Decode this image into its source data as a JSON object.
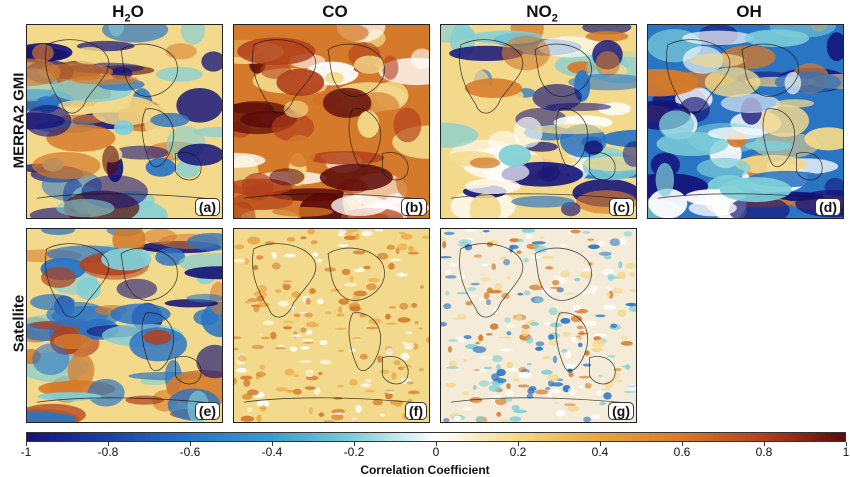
{
  "columns": [
    {
      "main": "H",
      "sub": "2",
      "tail": "O"
    },
    {
      "main": "CO",
      "sub": "",
      "tail": ""
    },
    {
      "main": "NO",
      "sub": "2",
      "tail": ""
    },
    {
      "main": "OH",
      "sub": "",
      "tail": ""
    }
  ],
  "rows": [
    "MERRA2 GMI",
    "Satellite"
  ],
  "panels": [
    {
      "letter": "(a)",
      "theme": "h2o_model"
    },
    {
      "letter": "(b)",
      "theme": "co_model"
    },
    {
      "letter": "(c)",
      "theme": "no2_model"
    },
    {
      "letter": "(d)",
      "theme": "oh_model"
    },
    {
      "letter": "(e)",
      "theme": "h2o_sat"
    },
    {
      "letter": "(f)",
      "theme": "co_sat"
    },
    {
      "letter": "(g)",
      "theme": "no2_sat"
    }
  ],
  "colorbar": {
    "label": "Correlation Coefficient",
    "ticks": [
      "-1",
      "-0.8",
      "-0.6",
      "-0.4",
      "-0.2",
      "0",
      "0.2",
      "0.4",
      "0.6",
      "0.8",
      "1"
    ],
    "min": -1,
    "max": 1
  },
  "colors": {
    "strong_negative": "#14137a",
    "negative": "#2a74c4",
    "weak_negative": "#7fcfd8",
    "zero": "#ffffff",
    "weak_positive": "#f3d98b",
    "positive": "#d57a2a",
    "strong_positive": "#5c0a0a"
  }
}
